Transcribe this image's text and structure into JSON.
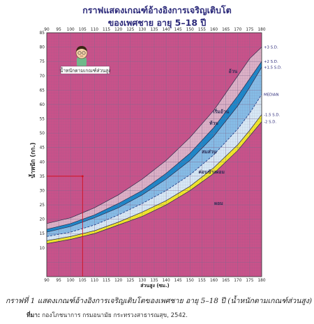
{
  "header": {
    "title_line1": "กราฟแสดงเกณฑ์อ้างอิงการเจริญเติบโต",
    "title_line2": "ของเพศชาย อายุ 5–18 ปี"
  },
  "badge": {
    "label": "น้ำหนักตามเกณฑ์ส่วนสูง"
  },
  "caption": "กราฟที่ 1 แสดงเกณฑ์อ้างอิงการเจริญเติบโตของเพศชาย อายุ 5–18 ปี (น้ำหนักตามเกณฑ์ส่วนสูง)",
  "source": {
    "label": "ที่มา:",
    "text": " กองโภชนาการ กรมอนามัย กระทรวงสาธารณสุข, 2542."
  },
  "chart_data": {
    "type": "area",
    "title": "",
    "xlabel": "ส่วนสูง (ซม.)",
    "ylabel": "น้ำหนัก (กก.)",
    "xlim": [
      90,
      180
    ],
    "ylim": [
      0,
      85
    ],
    "x_ticks": [
      90,
      95,
      100,
      105,
      110,
      115,
      120,
      125,
      130,
      135,
      140,
      145,
      150,
      155,
      160,
      165,
      170,
      175,
      180
    ],
    "y_ticks": [
      10,
      15,
      20,
      25,
      30,
      35,
      40,
      45,
      50,
      55,
      60,
      65,
      70,
      75,
      80,
      85
    ],
    "grid": true,
    "x": [
      90,
      100,
      110,
      120,
      130,
      140,
      150,
      160,
      170,
      175,
      180
    ],
    "series": [
      {
        "name": "+3 S.D.",
        "values": [
          18.5,
          20.5,
          24,
          28.5,
          34,
          40.5,
          48.5,
          58,
          70,
          76,
          80
        ]
      },
      {
        "name": "+2 S.D.",
        "values": [
          16.5,
          18.5,
          21.5,
          25.5,
          30,
          36,
          43,
          52,
          63,
          69,
          75
        ]
      },
      {
        "name": "+1.5 S.D.",
        "values": [
          15.5,
          17.5,
          20.5,
          24,
          28.5,
          34,
          40.5,
          49,
          59.5,
          66,
          73
        ]
      },
      {
        "name": "MEDIAN",
        "values": [
          14,
          15.5,
          18,
          21.5,
          25.5,
          30,
          35.5,
          42.5,
          51.5,
          57,
          63.5
        ]
      },
      {
        "name": "-1.5 S.D.",
        "values": [
          12.5,
          14,
          16,
          19,
          22.5,
          26.5,
          31.5,
          38,
          46,
          51,
          56.5
        ]
      },
      {
        "name": "-2 S.D.",
        "values": [
          11.5,
          13,
          15,
          18,
          21,
          25,
          30,
          36,
          44,
          49,
          54
        ]
      }
    ],
    "zones": [
      {
        "label": "อ้วน",
        "color": "#c8528a"
      },
      {
        "label": "เริ่มอ้วน",
        "color": "#dcb0c6"
      },
      {
        "label": "ท้วม",
        "color": "#1c87c9"
      },
      {
        "label": "สมส่วน",
        "color": "#86bce6"
      },
      {
        "label": "ค่อนข้างผอม",
        "color": "#d7e8f5"
      },
      {
        "label": "ผอม",
        "color": "#f2e829"
      }
    ],
    "reference_point": {
      "x": 105,
      "y": 35,
      "color": "#d0101e"
    },
    "colors": {
      "title": "#2c2a7a",
      "line_labels": "#2c2a7a",
      "grid": "#7c6a90"
    }
  }
}
